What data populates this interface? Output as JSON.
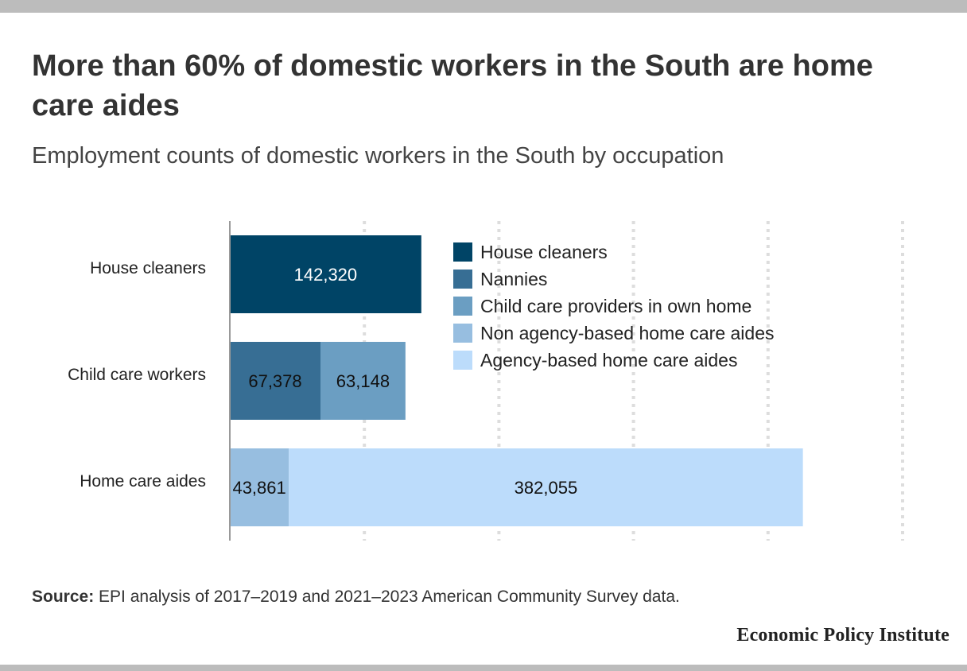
{
  "title": "More than 60% of domestic workers in the South are home care aides",
  "subtitle": "Employment counts of domestic workers in the South by occupation",
  "source_label": "Source:",
  "source_text": "EPI analysis of 2017–2019 and 2021–2023 American Community Survey data.",
  "publisher": "Economic Policy Institute",
  "chart_data": {
    "type": "bar",
    "orientation": "horizontal",
    "stacked": true,
    "categories": [
      "House cleaners",
      "Child care workers",
      "Home care aides"
    ],
    "series": [
      {
        "name": "House cleaners",
        "color": "#004466",
        "values": [
          142320,
          0,
          0
        ],
        "labels": [
          "142,320",
          "",
          ""
        ],
        "label_color": "#ffffff"
      },
      {
        "name": "Nannies",
        "color": "#376e94",
        "values": [
          0,
          67378,
          0
        ],
        "labels": [
          "",
          "67,378",
          ""
        ],
        "label_color": "#111111"
      },
      {
        "name": "Child care providers in own home",
        "color": "#6b9ec2",
        "values": [
          0,
          63148,
          0
        ],
        "labels": [
          "",
          "63,148",
          ""
        ],
        "label_color": "#111111"
      },
      {
        "name": "Non agency-based home care aides",
        "color": "#97bee0",
        "values": [
          0,
          0,
          43861
        ],
        "labels": [
          "",
          "",
          "43,861"
        ],
        "label_color": "#111111"
      },
      {
        "name": "Agency-based home care aides",
        "color": "#bcdcfb",
        "values": [
          0,
          0,
          382055
        ],
        "labels": [
          "",
          "",
          "382,055"
        ],
        "label_color": "#111111"
      }
    ],
    "xlim": [
      0,
      500000
    ],
    "gridlines": [
      100000,
      200000,
      300000,
      400000,
      500000
    ],
    "grid": true,
    "xaxis_labels": false,
    "legend_position": "top-right inside plot"
  }
}
